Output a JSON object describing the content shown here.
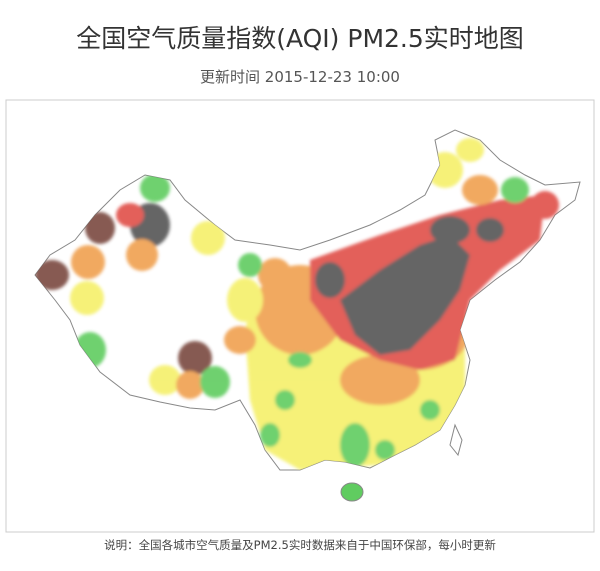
{
  "header": {
    "title": "全国空气质量指数(AQI) PM2.5实时地图",
    "subtitle": "更新时间 2015-12-23 10:00"
  },
  "footer": {
    "note": "说明：全国各城市空气质量及PM2.5实时数据来自于中国环保部，每小时更新"
  }
}
